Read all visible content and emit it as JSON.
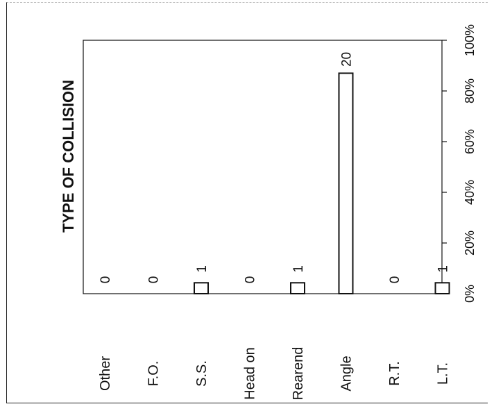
{
  "chart_data": {
    "type": "bar",
    "orientation": "rotated",
    "title": "TYPE OF COLLISION",
    "categories": [
      "Other",
      "F.O.",
      "S.S.",
      "Head on",
      "Rearend",
      "Angle",
      "R.T.",
      "L.T."
    ],
    "values": [
      0,
      0,
      1,
      0,
      1,
      20,
      0,
      1
    ],
    "percentages": [
      0,
      0,
      4.3,
      0,
      4.3,
      87,
      0,
      4.3
    ],
    "value_labels": [
      "0",
      "0",
      "1",
      "0",
      "1",
      "20",
      "0",
      "1"
    ],
    "axis_ticks": [
      "0%",
      "20%",
      "40%",
      "60%",
      "80%",
      "100%"
    ],
    "axis_range": [
      0,
      100
    ],
    "grid": false,
    "colors": {
      "bar_fill": "#ffffff",
      "bar_stroke": "#111111"
    }
  }
}
